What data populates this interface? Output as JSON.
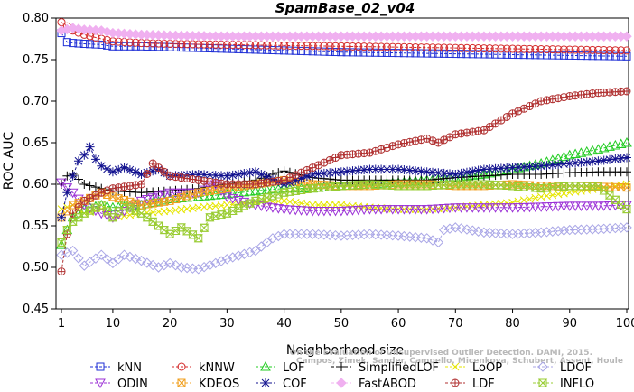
{
  "chart_data": {
    "type": "line",
    "title": "SpamBase_02_v04",
    "xlabel": "Neighborhood size",
    "ylabel": "ROC AUC",
    "xlim": [
      1,
      100
    ],
    "ylim": [
      0.45,
      0.8
    ],
    "xticks": [
      1,
      10,
      20,
      30,
      40,
      50,
      60,
      70,
      80,
      90,
      100
    ],
    "yticks": [
      "0.45",
      "0.50",
      "0.55",
      "0.60",
      "0.65",
      "0.70",
      "0.75",
      "0.80"
    ],
    "grid": false,
    "legend_position": "bottom",
    "watermark": [
      "On the Evaluation of Unsupervised Outlier Detection. DAMI, 2015.",
      "Campos, Zimek, Sander, Campello, Micenkova, Schubert, Assent, Houle"
    ],
    "series": [
      {
        "name": "kNN",
        "color": "#1f2fd6",
        "marker": "square",
        "line": "dashed",
        "points": [
          [
            1,
            0.782
          ],
          [
            2,
            0.771
          ],
          [
            3,
            0.77
          ],
          [
            5,
            0.769
          ],
          [
            8,
            0.768
          ],
          [
            10,
            0.766
          ],
          [
            15,
            0.766
          ],
          [
            20,
            0.765
          ],
          [
            30,
            0.763
          ],
          [
            40,
            0.761
          ],
          [
            50,
            0.759
          ],
          [
            60,
            0.758
          ],
          [
            70,
            0.757
          ],
          [
            80,
            0.756
          ],
          [
            90,
            0.755
          ],
          [
            100,
            0.754
          ]
        ]
      },
      {
        "name": "kNNW",
        "color": "#d42a2a",
        "marker": "circle",
        "line": "dashed",
        "points": [
          [
            1,
            0.795
          ],
          [
            2,
            0.79
          ],
          [
            3,
            0.785
          ],
          [
            5,
            0.78
          ],
          [
            8,
            0.775
          ],
          [
            10,
            0.772
          ],
          [
            15,
            0.77
          ],
          [
            20,
            0.769
          ],
          [
            30,
            0.768
          ],
          [
            40,
            0.767
          ],
          [
            50,
            0.766
          ],
          [
            60,
            0.765
          ],
          [
            70,
            0.764
          ],
          [
            80,
            0.763
          ],
          [
            90,
            0.762
          ],
          [
            100,
            0.761
          ]
        ]
      },
      {
        "name": "LOF",
        "color": "#22cc22",
        "marker": "triangle-up",
        "line": "dashed",
        "points": [
          [
            1,
            0.527
          ],
          [
            2,
            0.545
          ],
          [
            3,
            0.56
          ],
          [
            5,
            0.57
          ],
          [
            8,
            0.575
          ],
          [
            10,
            0.572
          ],
          [
            15,
            0.575
          ],
          [
            20,
            0.582
          ],
          [
            25,
            0.585
          ],
          [
            30,
            0.588
          ],
          [
            35,
            0.592
          ],
          [
            40,
            0.595
          ],
          [
            45,
            0.595
          ],
          [
            50,
            0.598
          ],
          [
            55,
            0.6
          ],
          [
            60,
            0.602
          ],
          [
            65,
            0.605
          ],
          [
            70,
            0.608
          ],
          [
            75,
            0.612
          ],
          [
            80,
            0.618
          ],
          [
            85,
            0.625
          ],
          [
            90,
            0.635
          ],
          [
            95,
            0.642
          ],
          [
            100,
            0.65
          ]
        ]
      },
      {
        "name": "SimplifiedLOF",
        "color": "#000000",
        "marker": "plus",
        "line": "dashed",
        "points": [
          [
            1,
            0.6
          ],
          [
            2,
            0.61
          ],
          [
            3,
            0.612
          ],
          [
            5,
            0.6
          ],
          [
            8,
            0.595
          ],
          [
            10,
            0.592
          ],
          [
            15,
            0.59
          ],
          [
            20,
            0.592
          ],
          [
            25,
            0.595
          ],
          [
            30,
            0.6
          ],
          [
            35,
            0.605
          ],
          [
            38,
            0.612
          ],
          [
            40,
            0.616
          ],
          [
            45,
            0.608
          ],
          [
            50,
            0.605
          ],
          [
            55,
            0.605
          ],
          [
            60,
            0.605
          ],
          [
            65,
            0.605
          ],
          [
            70,
            0.608
          ],
          [
            75,
            0.61
          ],
          [
            80,
            0.612
          ],
          [
            85,
            0.612
          ],
          [
            90,
            0.614
          ],
          [
            95,
            0.615
          ],
          [
            100,
            0.615
          ]
        ]
      },
      {
        "name": "LoOP",
        "color": "#e6e600",
        "marker": "cross",
        "line": "dashed",
        "points": [
          [
            1,
            0.57
          ],
          [
            3,
            0.575
          ],
          [
            5,
            0.565
          ],
          [
            8,
            0.57
          ],
          [
            10,
            0.56
          ],
          [
            15,
            0.565
          ],
          [
            20,
            0.568
          ],
          [
            25,
            0.572
          ],
          [
            30,
            0.575
          ],
          [
            35,
            0.578
          ],
          [
            40,
            0.58
          ],
          [
            45,
            0.575
          ],
          [
            50,
            0.575
          ],
          [
            55,
            0.572
          ],
          [
            60,
            0.57
          ],
          [
            65,
            0.57
          ],
          [
            70,
            0.572
          ],
          [
            75,
            0.575
          ],
          [
            80,
            0.578
          ],
          [
            85,
            0.585
          ],
          [
            90,
            0.59
          ],
          [
            95,
            0.595
          ],
          [
            100,
            0.6
          ]
        ]
      },
      {
        "name": "LDOF",
        "color": "#a9a6e6",
        "marker": "diamond",
        "line": "dashed",
        "points": [
          [
            1,
            0.515
          ],
          [
            3,
            0.52
          ],
          [
            5,
            0.502
          ],
          [
            8,
            0.515
          ],
          [
            10,
            0.505
          ],
          [
            12,
            0.515
          ],
          [
            15,
            0.508
          ],
          [
            18,
            0.5
          ],
          [
            20,
            0.505
          ],
          [
            22,
            0.5
          ],
          [
            25,
            0.498
          ],
          [
            28,
            0.505
          ],
          [
            30,
            0.51
          ],
          [
            35,
            0.52
          ],
          [
            38,
            0.535
          ],
          [
            40,
            0.54
          ],
          [
            45,
            0.54
          ],
          [
            50,
            0.538
          ],
          [
            55,
            0.54
          ],
          [
            60,
            0.538
          ],
          [
            65,
            0.535
          ],
          [
            67,
            0.53
          ],
          [
            68,
            0.545
          ],
          [
            70,
            0.548
          ],
          [
            75,
            0.542
          ],
          [
            80,
            0.54
          ],
          [
            85,
            0.542
          ],
          [
            90,
            0.545
          ],
          [
            95,
            0.546
          ],
          [
            100,
            0.548
          ]
        ]
      },
      {
        "name": "ODIN",
        "color": "#9b30d6",
        "marker": "triangle-down",
        "line": "dashed",
        "points": [
          [
            1,
            0.602
          ],
          [
            3,
            0.59
          ],
          [
            5,
            0.575
          ],
          [
            8,
            0.565
          ],
          [
            10,
            0.56
          ],
          [
            15,
            0.58
          ],
          [
            20,
            0.59
          ],
          [
            25,
            0.59
          ],
          [
            28,
            0.6
          ],
          [
            30,
            0.585
          ],
          [
            35,
            0.575
          ],
          [
            40,
            0.57
          ],
          [
            45,
            0.568
          ],
          [
            50,
            0.568
          ],
          [
            55,
            0.57
          ],
          [
            60,
            0.57
          ],
          [
            65,
            0.57
          ],
          [
            70,
            0.572
          ],
          [
            75,
            0.572
          ],
          [
            80,
            0.572
          ],
          [
            85,
            0.573
          ],
          [
            90,
            0.574
          ],
          [
            95,
            0.574
          ],
          [
            100,
            0.575
          ]
        ]
      },
      {
        "name": "KDEOS",
        "color": "#f0a020",
        "marker": "square-cross",
        "line": "dashed",
        "points": [
          [
            1,
            0.56
          ],
          [
            3,
            0.575
          ],
          [
            5,
            0.58
          ],
          [
            8,
            0.59
          ],
          [
            10,
            0.585
          ],
          [
            15,
            0.575
          ],
          [
            20,
            0.58
          ],
          [
            25,
            0.59
          ],
          [
            30,
            0.595
          ],
          [
            35,
            0.6
          ],
          [
            40,
            0.605
          ],
          [
            45,
            0.6
          ],
          [
            50,
            0.598
          ],
          [
            55,
            0.598
          ],
          [
            60,
            0.6
          ],
          [
            65,
            0.6
          ],
          [
            70,
            0.598
          ],
          [
            75,
            0.598
          ],
          [
            80,
            0.6
          ],
          [
            85,
            0.598
          ],
          [
            90,
            0.598
          ],
          [
            95,
            0.597
          ],
          [
            100,
            0.596
          ]
        ]
      },
      {
        "name": "COF",
        "color": "#12128f",
        "marker": "asterisk",
        "line": "dashed",
        "points": [
          [
            1,
            0.56
          ],
          [
            2,
            0.59
          ],
          [
            3,
            0.61
          ],
          [
            4,
            0.628
          ],
          [
            5,
            0.635
          ],
          [
            6,
            0.645
          ],
          [
            7,
            0.63
          ],
          [
            8,
            0.622
          ],
          [
            10,
            0.615
          ],
          [
            12,
            0.62
          ],
          [
            15,
            0.612
          ],
          [
            18,
            0.618
          ],
          [
            20,
            0.61
          ],
          [
            25,
            0.612
          ],
          [
            30,
            0.61
          ],
          [
            35,
            0.615
          ],
          [
            40,
            0.6
          ],
          [
            45,
            0.612
          ],
          [
            50,
            0.615
          ],
          [
            55,
            0.618
          ],
          [
            60,
            0.618
          ],
          [
            65,
            0.615
          ],
          [
            70,
            0.612
          ],
          [
            75,
            0.618
          ],
          [
            80,
            0.62
          ],
          [
            85,
            0.622
          ],
          [
            90,
            0.625
          ],
          [
            95,
            0.628
          ],
          [
            100,
            0.632
          ]
        ]
      },
      {
        "name": "FastABOD",
        "color": "#f0b0f0",
        "marker": "diamond-filled",
        "line": "dashed",
        "points": [
          [
            1,
            0.785
          ],
          [
            3,
            0.788
          ],
          [
            5,
            0.786
          ],
          [
            8,
            0.785
          ],
          [
            10,
            0.782
          ],
          [
            15,
            0.78
          ],
          [
            20,
            0.779
          ],
          [
            30,
            0.778
          ],
          [
            40,
            0.778
          ],
          [
            50,
            0.778
          ],
          [
            60,
            0.778
          ],
          [
            70,
            0.778
          ],
          [
            80,
            0.778
          ],
          [
            90,
            0.778
          ],
          [
            100,
            0.778
          ]
        ]
      },
      {
        "name": "LDF",
        "color": "#b03030",
        "marker": "circle-plus",
        "line": "dashed",
        "points": [
          [
            1,
            0.495
          ],
          [
            2,
            0.54
          ],
          [
            3,
            0.565
          ],
          [
            5,
            0.58
          ],
          [
            8,
            0.59
          ],
          [
            10,
            0.595
          ],
          [
            15,
            0.6
          ],
          [
            17,
            0.625
          ],
          [
            20,
            0.61
          ],
          [
            25,
            0.605
          ],
          [
            30,
            0.6
          ],
          [
            35,
            0.6
          ],
          [
            40,
            0.605
          ],
          [
            45,
            0.62
          ],
          [
            50,
            0.635
          ],
          [
            55,
            0.638
          ],
          [
            60,
            0.648
          ],
          [
            65,
            0.655
          ],
          [
            67,
            0.65
          ],
          [
            70,
            0.66
          ],
          [
            75,
            0.665
          ],
          [
            80,
            0.685
          ],
          [
            85,
            0.7
          ],
          [
            90,
            0.706
          ],
          [
            95,
            0.71
          ],
          [
            100,
            0.712
          ]
        ]
      },
      {
        "name": "INFLO",
        "color": "#99cc33",
        "marker": "hourglass-square",
        "line": "dashed",
        "points": [
          [
            1,
            0.53
          ],
          [
            2,
            0.545
          ],
          [
            3,
            0.555
          ],
          [
            5,
            0.565
          ],
          [
            8,
            0.575
          ],
          [
            10,
            0.56
          ],
          [
            12,
            0.575
          ],
          [
            15,
            0.565
          ],
          [
            18,
            0.55
          ],
          [
            20,
            0.54
          ],
          [
            22,
            0.548
          ],
          [
            25,
            0.535
          ],
          [
            27,
            0.56
          ],
          [
            30,
            0.565
          ],
          [
            35,
            0.58
          ],
          [
            40,
            0.59
          ],
          [
            45,
            0.595
          ],
          [
            50,
            0.598
          ],
          [
            55,
            0.6
          ],
          [
            60,
            0.598
          ],
          [
            65,
            0.598
          ],
          [
            70,
            0.6
          ],
          [
            75,
            0.6
          ],
          [
            80,
            0.598
          ],
          [
            85,
            0.595
          ],
          [
            90,
            0.598
          ],
          [
            95,
            0.598
          ],
          [
            100,
            0.57
          ]
        ]
      }
    ]
  }
}
